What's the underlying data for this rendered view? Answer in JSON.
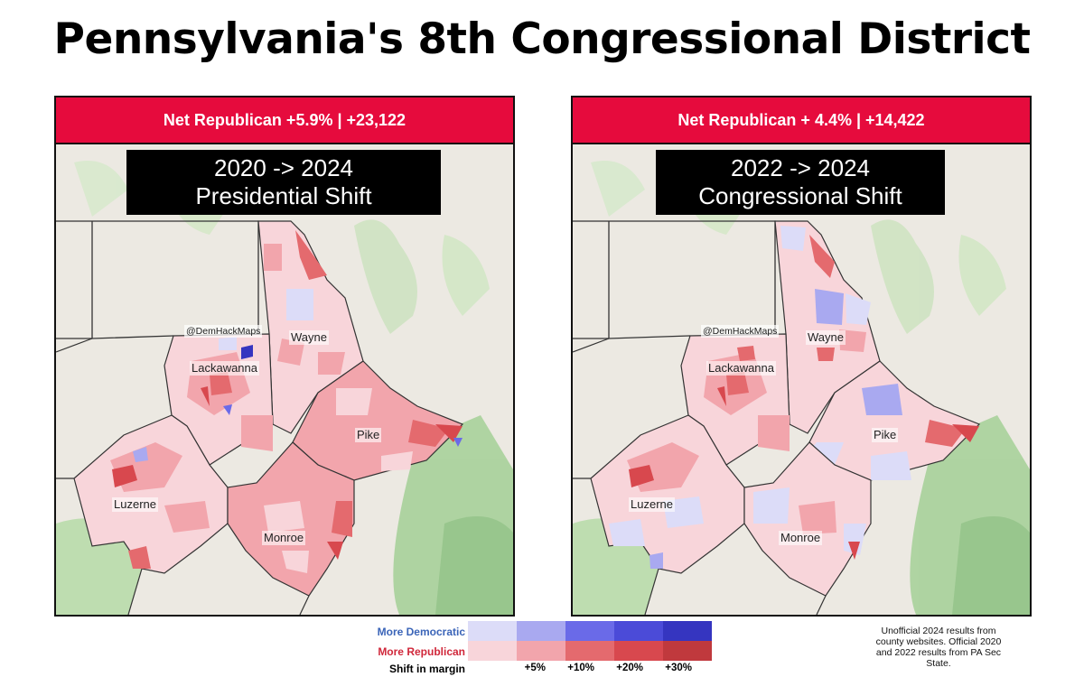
{
  "title": "Pennsylvania's 8th Congressional District",
  "panels": [
    {
      "banner": "Net Republican +5.9% | +23,122",
      "shift_line1": "2020 -> 2024",
      "shift_line2": "Presidential Shift",
      "watermark": "@DemHackMaps",
      "counties": [
        "Wayne",
        "Lackawanna",
        "Pike",
        "Luzerne",
        "Monroe"
      ]
    },
    {
      "banner": "Net Republican + 4.4% | +14,422",
      "shift_line1": "2022 -> 2024",
      "shift_line2": "Congressional Shift",
      "watermark": "@DemHackMaps",
      "counties": [
        "Wayne",
        "Lackawanna",
        "Pike",
        "Luzerne",
        "Monroe"
      ]
    }
  ],
  "legend": {
    "dem_label": "More Democratic",
    "rep_label": "More Republican",
    "shift_label": "Shift in margin",
    "ticks": [
      "+5%",
      "+10%",
      "+20%",
      "+30%"
    ],
    "dem_colors": [
      "#dcdcf8",
      "#a9a9f0",
      "#6a6ae8",
      "#4b4bd8",
      "#3535c0"
    ],
    "rep_colors": [
      "#f8d5da",
      "#f2a5ac",
      "#e46a6e",
      "#d8484e",
      "#c0393d"
    ]
  },
  "source_note": "Unofficial 2024 results from county websites. Official 2020 and 2022 results from PA Sec State."
}
